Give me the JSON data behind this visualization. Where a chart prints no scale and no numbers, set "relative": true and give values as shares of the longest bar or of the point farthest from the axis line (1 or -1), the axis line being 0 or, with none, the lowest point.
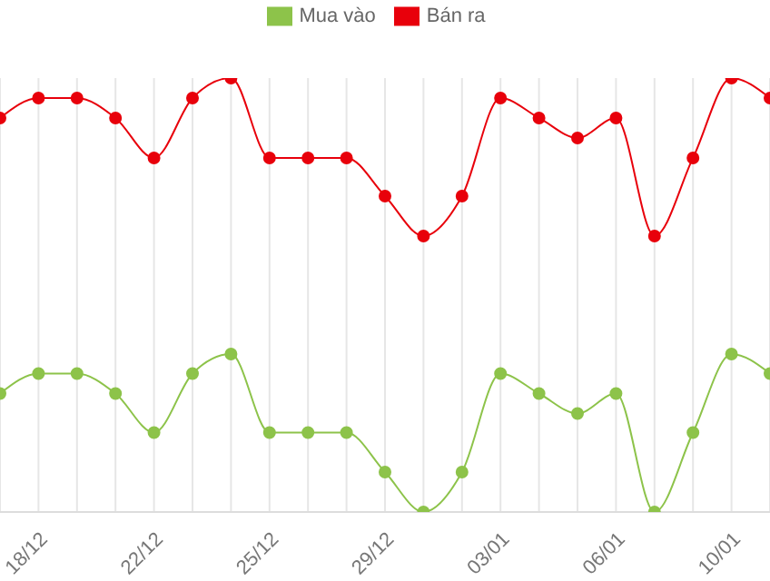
{
  "chart_data": {
    "type": "line",
    "relative": true,
    "categories": [
      null,
      "18/12",
      null,
      null,
      "22/12",
      null,
      null,
      "25/12",
      null,
      null,
      "29/12",
      null,
      null,
      "03/01",
      null,
      null,
      "06/01",
      null,
      null,
      "10/01",
      null
    ],
    "series": [
      {
        "name": "Mua vào",
        "color": "#8dc34a",
        "values": [
          0.273,
          0.319,
          0.319,
          0.273,
          0.183,
          0.319,
          0.364,
          0.183,
          0.183,
          0.183,
          0.092,
          0,
          0.092,
          0.319,
          0.273,
          0.227,
          0.273,
          0,
          0.183,
          0.364,
          0.319
        ]
      },
      {
        "name": "Bán ra",
        "color": "#e8000b",
        "values": [
          0.908,
          0.954,
          0.954,
          0.908,
          0.816,
          0.954,
          1,
          0.816,
          0.816,
          0.816,
          0.728,
          0.636,
          0.728,
          0.954,
          0.908,
          0.862,
          0.908,
          0.636,
          0.816,
          1,
          0.954
        ]
      }
    ],
    "grid": "x",
    "legend": "top",
    "marker": "circle",
    "line_style": "solid"
  }
}
